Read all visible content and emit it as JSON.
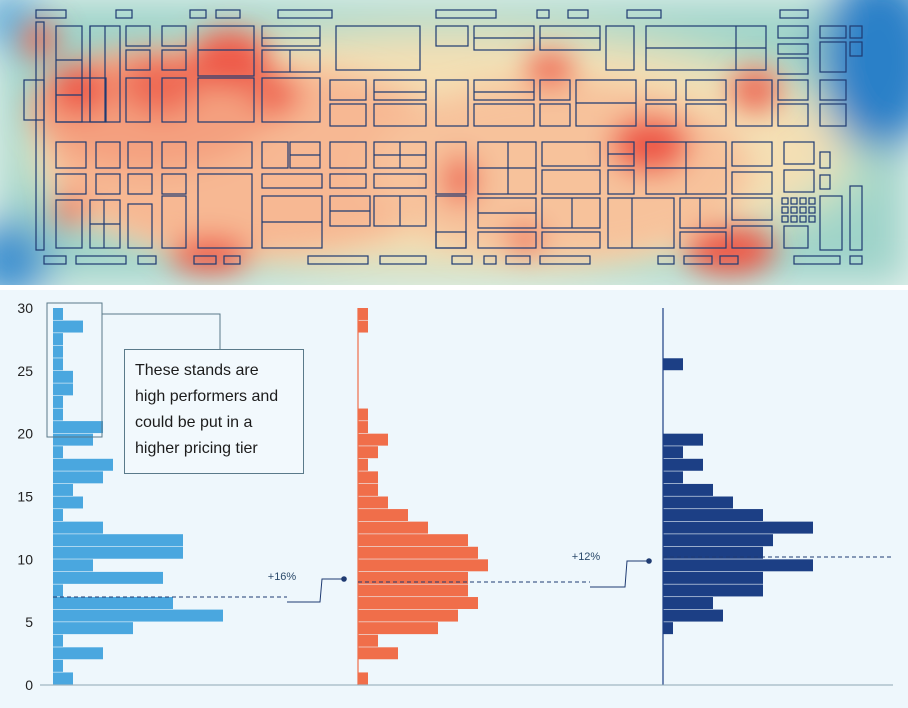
{
  "annotation": {
    "text": "These stands are high performers and could be put in a higher pricing tier"
  },
  "colors": {
    "left": "#4aa7df",
    "middle": "#f06e4a",
    "right": "#1c3f85",
    "panel_bg": "#eef7fc"
  },
  "chart_data": [
    {
      "type": "bar",
      "orientation": "horizontal",
      "x_axis": {
        "range": [
          0,
          20
        ]
      },
      "y_axis": {
        "range": [
          0,
          30
        ],
        "ticks": [
          "0",
          "5",
          "10",
          "15",
          "20",
          "25",
          "30"
        ]
      },
      "bins": [
        0,
        1,
        2,
        3,
        4,
        5,
        6,
        7,
        8,
        9,
        10,
        11,
        12,
        13,
        14,
        15,
        16,
        17,
        18,
        19,
        20,
        21,
        22,
        23,
        24,
        25,
        26,
        27,
        28,
        29
      ],
      "values": [
        2,
        1,
        5,
        1,
        8,
        17,
        12,
        1,
        11,
        4,
        13,
        13,
        5,
        1,
        3,
        2,
        5,
        6,
        1,
        4,
        5,
        1,
        1,
        2,
        2,
        1,
        1,
        1,
        3,
        1
      ],
      "mean_annotation": "+16%"
    },
    {
      "type": "bar",
      "orientation": "horizontal",
      "x_axis": {
        "range": [
          0,
          20
        ]
      },
      "bins": [
        0,
        1,
        2,
        3,
        4,
        5,
        6,
        7,
        8,
        9,
        10,
        11,
        12,
        13,
        14,
        15,
        16,
        17,
        18,
        19,
        20,
        21,
        22,
        23,
        24,
        25,
        26,
        27,
        28,
        29
      ],
      "values": [
        1,
        0,
        4,
        2,
        8,
        10,
        12,
        11,
        11,
        13,
        12,
        11,
        7,
        5,
        3,
        2,
        2,
        1,
        2,
        3,
        1,
        1,
        0,
        0,
        0,
        0,
        0,
        0,
        1,
        1
      ]
    },
    {
      "type": "bar",
      "orientation": "horizontal",
      "x_axis": {
        "range": [
          0,
          20
        ]
      },
      "bins": [
        0,
        1,
        2,
        3,
        4,
        5,
        6,
        7,
        8,
        9,
        10,
        11,
        12,
        13,
        14,
        15,
        16,
        17,
        18,
        19,
        20,
        21,
        22,
        23,
        24,
        25,
        26,
        27,
        28,
        29
      ],
      "values": [
        0,
        0,
        0,
        0,
        1,
        6,
        5,
        10,
        10,
        15,
        10,
        11,
        15,
        10,
        7,
        5,
        2,
        4,
        2,
        4,
        0,
        0,
        0,
        0,
        0,
        2,
        0,
        0,
        0,
        0
      ],
      "mean_annotation": "+12%"
    }
  ]
}
